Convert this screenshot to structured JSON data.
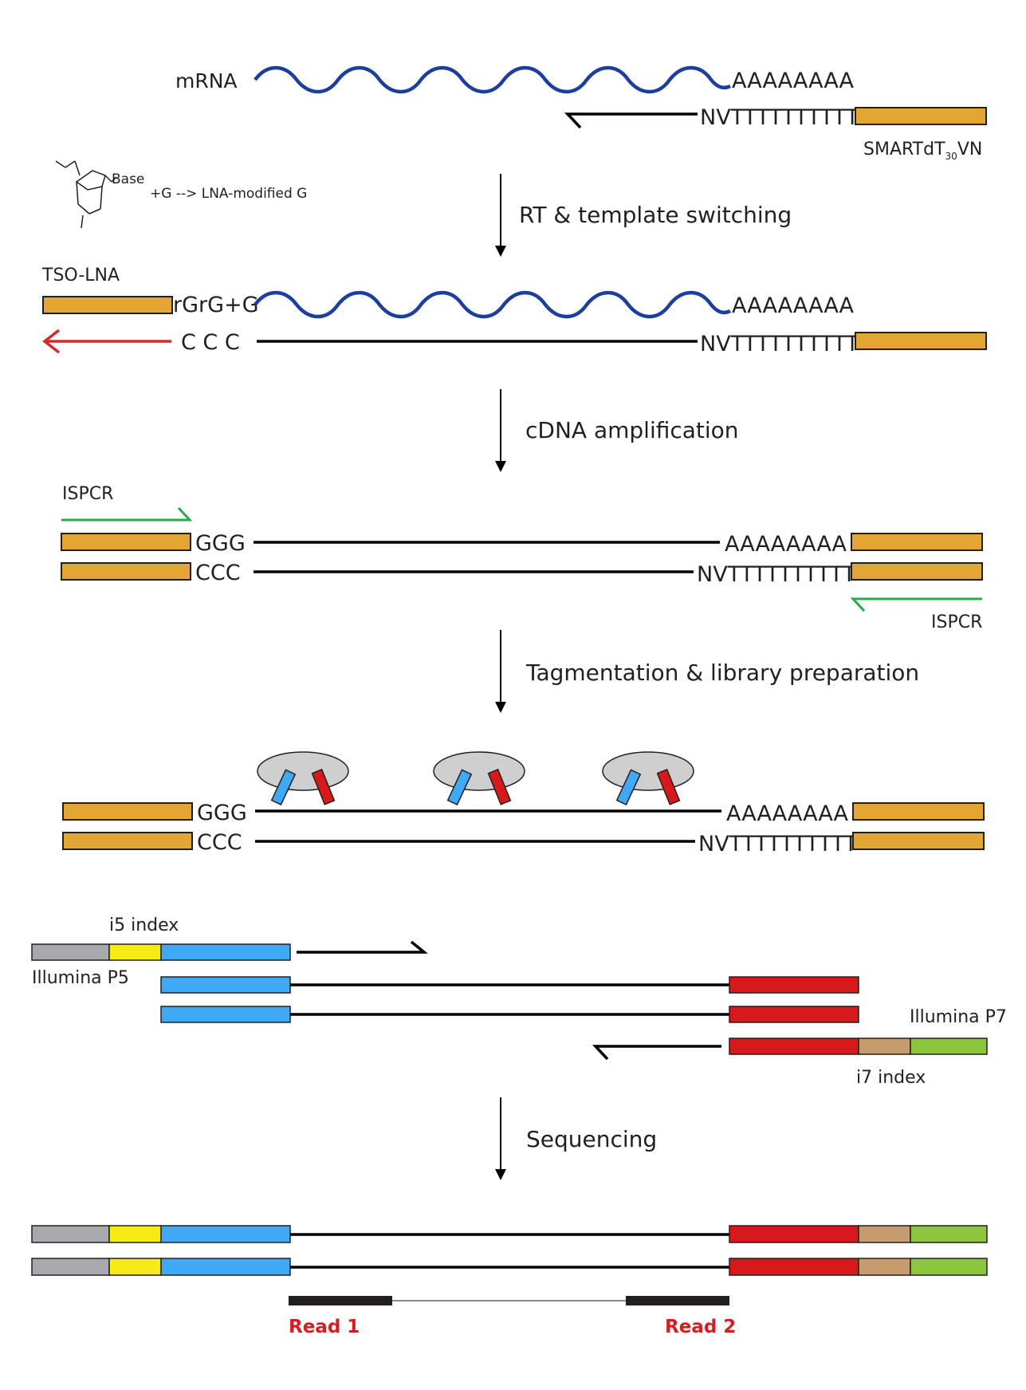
{
  "labels": {
    "mrna": "mRNA",
    "polyA": "AAAAAAAA",
    "oligo_dt": "NVTTTTTTTTTT",
    "smart_prefix": "SMARTdT",
    "smart_sub": "30",
    "smart_suffix": "VN",
    "base": "Base",
    "lna_note": "+G --> LNA-modified G",
    "tso_lna": "TSO-LNA",
    "rgrg": "rGrG+G",
    "ccc_spaced": "C C C",
    "ispcr": "ISPCR",
    "ggg": "GGG",
    "ccc": "CCC",
    "i5": "i5 index",
    "p5": "Illumina P5",
    "p7": "Illumina P7",
    "i7": "i7 index",
    "read1": "Read 1",
    "read2": "Read 2"
  },
  "steps": [
    "RT & template switching",
    "cDNA amplification",
    "Tagmentation & library preparation",
    "Sequencing"
  ],
  "colors": {
    "adapter": "#e3a632",
    "mrna": "#1c3f9e",
    "red_arrow": "#d32a2a",
    "green_primer": "#2aa84a",
    "p5": "#a7a9ac",
    "i5": "#f6eb16",
    "read1_seq": "#3fa9f5",
    "read2_seq": "#d7191c",
    "i7": "#c69c6d",
    "p7": "#8cc63f",
    "tn5": "#cfcfcf",
    "read_label": "#d22020"
  }
}
